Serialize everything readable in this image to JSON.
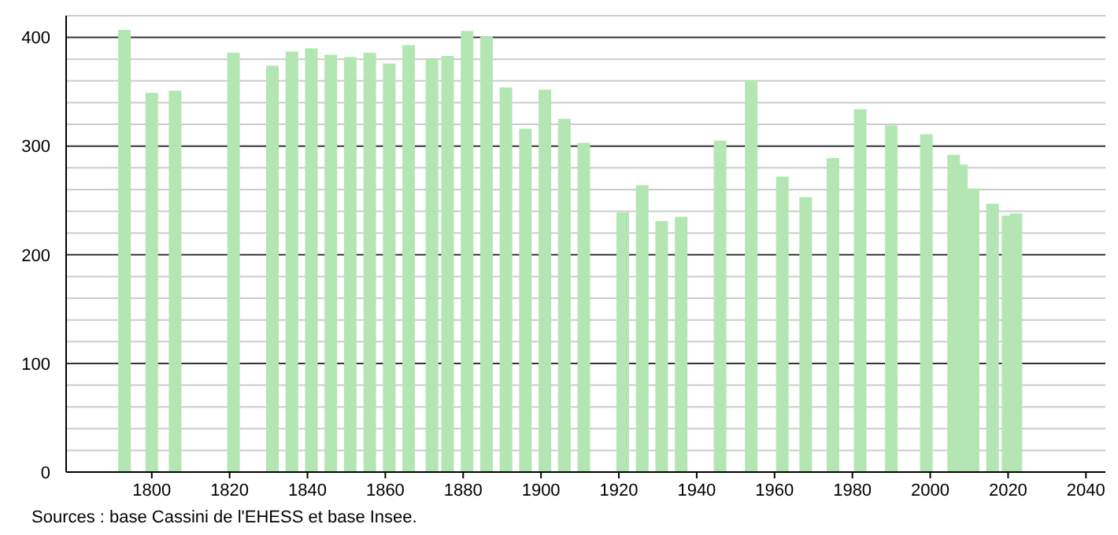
{
  "chart_data": {
    "type": "bar",
    "x": [
      1793,
      1800,
      1806,
      1821,
      1831,
      1836,
      1841,
      1846,
      1851,
      1856,
      1861,
      1866,
      1872,
      1876,
      1881,
      1886,
      1891,
      1896,
      1901,
      1906,
      1911,
      1921,
      1926,
      1931,
      1936,
      1946,
      1954,
      1962,
      1968,
      1975,
      1982,
      1990,
      1999,
      2006,
      2008,
      2011,
      2016,
      2020,
      2022
    ],
    "values": [
      407,
      349,
      351,
      386,
      374,
      387,
      390,
      384,
      382,
      386,
      376,
      393,
      381,
      383,
      406,
      401,
      354,
      316,
      352,
      325,
      303,
      239,
      264,
      231,
      235,
      305,
      360,
      272,
      253,
      289,
      334,
      319,
      311,
      292,
      283,
      261,
      247,
      236,
      238
    ],
    "color": "#b3e6b3",
    "xlim": [
      1778,
      2045
    ],
    "xticks": [
      1800,
      1820,
      1840,
      1860,
      1880,
      1900,
      1920,
      1940,
      1960,
      1980,
      2000,
      2020,
      2040
    ],
    "ylim": [
      0,
      420
    ],
    "yticks": [
      0,
      {
        "value": 20,
        "label": null
      },
      {
        "value": 40,
        "label": null
      },
      {
        "value": 60,
        "label": null
      },
      {
        "value": 80,
        "label": null
      },
      100,
      {
        "value": 120,
        "label": null
      },
      {
        "value": 140,
        "label": null
      },
      {
        "value": 160,
        "label": null
      },
      {
        "value": 180,
        "label": null
      },
      200,
      {
        "value": 220,
        "label": null
      },
      {
        "value": 240,
        "label": null
      },
      {
        "value": 260,
        "label": null
      },
      {
        "value": 280,
        "label": null
      },
      300,
      {
        "value": 320,
        "label": null
      },
      {
        "value": 340,
        "label": null
      },
      {
        "value": 360,
        "label": null
      },
      {
        "value": 380,
        "label": null
      },
      400,
      {
        "value": 420,
        "label": null
      }
    ],
    "grid": "y",
    "annotations": [
      "Sources : base Cassini de l'EHESS et base Insee."
    ]
  }
}
